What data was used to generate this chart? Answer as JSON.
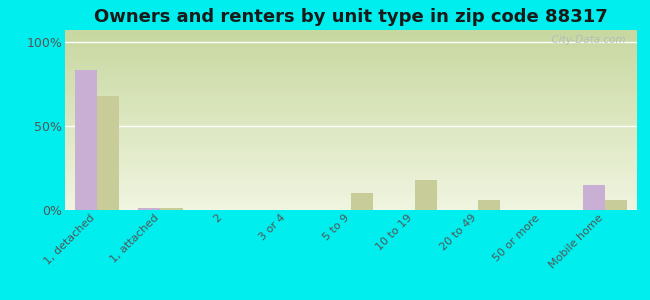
{
  "title": "Owners and renters by unit type in zip code 88317",
  "categories": [
    "1, detached",
    "1, attached",
    "2",
    "3 or 4",
    "5 to 9",
    "10 to 19",
    "20 to 49",
    "50 or more",
    "Mobile home"
  ],
  "owner_values": [
    83,
    1,
    0,
    0,
    0,
    0,
    0,
    0,
    15
  ],
  "renter_values": [
    68,
    1,
    0,
    0,
    10,
    18,
    6,
    0,
    6
  ],
  "owner_color": "#c9afd4",
  "renter_color": "#c8cc99",
  "background_color": "#00eeee",
  "yticks": [
    0,
    50,
    100
  ],
  "ylim": [
    0,
    107
  ],
  "bar_width": 0.35,
  "watermark": "  City-Data.com",
  "gradient_top": "#c8d8a0",
  "gradient_bottom": "#f0f5e0",
  "title_fontsize": 13,
  "tick_fontsize": 8,
  "ytick_fontsize": 9
}
